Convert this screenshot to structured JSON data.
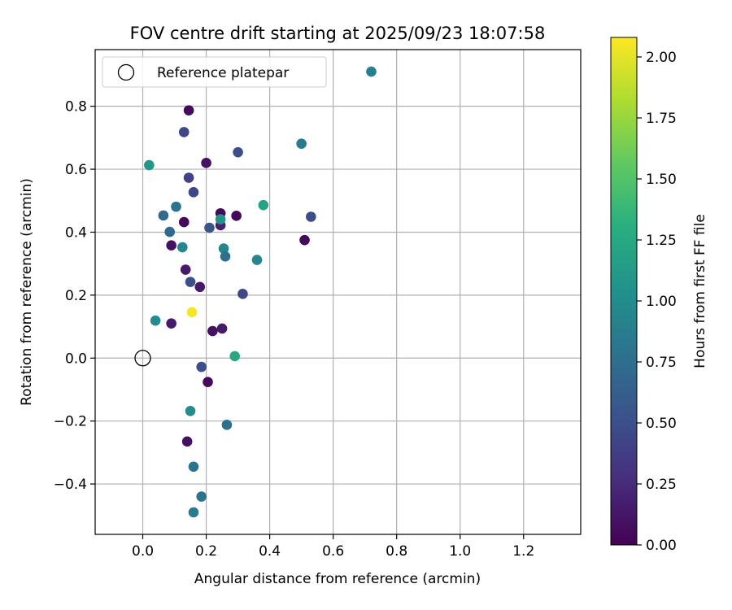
{
  "chart_data": {
    "type": "scatter",
    "title": "FOV centre drift starting at 2025/09/23 18:07:58",
    "xlabel": "Angular distance from reference (arcmin)",
    "ylabel": "Rotation from reference (arcmin)",
    "xlim": [
      -0.15,
      1.38
    ],
    "ylim": [
      -0.56,
      0.98
    ],
    "xticks": [
      "0.0",
      "0.2",
      "0.4",
      "0.6",
      "0.8",
      "1.0",
      "1.2"
    ],
    "xtick_values": [
      0.0,
      0.2,
      0.4,
      0.6,
      0.8,
      1.0,
      1.2
    ],
    "yticks": [
      "−0.4",
      "−0.2",
      "0.0",
      "0.2",
      "0.4",
      "0.6",
      "0.8"
    ],
    "ytick_values": [
      -0.4,
      -0.2,
      0.0,
      0.2,
      0.4,
      0.6,
      0.8
    ],
    "grid": true,
    "legend": {
      "position": "top-left",
      "entries": [
        "Reference platepar"
      ]
    },
    "reference_point": {
      "x": 0.0,
      "y": 0.0
    },
    "colorbar": {
      "label": "Hours from first FF file",
      "range": [
        0.0,
        2.08
      ],
      "ticks": [
        "0.00",
        "0.25",
        "0.50",
        "0.75",
        "1.00",
        "1.25",
        "1.50",
        "1.75",
        "2.00"
      ],
      "tick_values": [
        0.0,
        0.25,
        0.5,
        0.75,
        1.0,
        1.25,
        1.5,
        1.75,
        2.0
      ],
      "colormap": "viridis"
    },
    "points": [
      {
        "x": 0.145,
        "y": 0.787,
        "c": 0.05
      },
      {
        "x": 0.13,
        "y": 0.718,
        "c": 0.45
      },
      {
        "x": 0.72,
        "y": 0.91,
        "c": 0.9
      },
      {
        "x": 0.3,
        "y": 0.654,
        "c": 0.5
      },
      {
        "x": 0.5,
        "y": 0.681,
        "c": 0.85
      },
      {
        "x": 0.02,
        "y": 0.613,
        "c": 1.1
      },
      {
        "x": 0.2,
        "y": 0.62,
        "c": 0.1
      },
      {
        "x": 0.145,
        "y": 0.573,
        "c": 0.4
      },
      {
        "x": 0.16,
        "y": 0.527,
        "c": 0.45
      },
      {
        "x": 0.065,
        "y": 0.453,
        "c": 0.7
      },
      {
        "x": 0.105,
        "y": 0.481,
        "c": 0.8
      },
      {
        "x": 0.245,
        "y": 0.46,
        "c": 0.05
      },
      {
        "x": 0.295,
        "y": 0.452,
        "c": 0.05
      },
      {
        "x": 0.38,
        "y": 0.486,
        "c": 1.2
      },
      {
        "x": 0.53,
        "y": 0.449,
        "c": 0.5
      },
      {
        "x": 0.13,
        "y": 0.432,
        "c": 0.05
      },
      {
        "x": 0.245,
        "y": 0.422,
        "c": 0.2
      },
      {
        "x": 0.245,
        "y": 0.441,
        "c": 1.05
      },
      {
        "x": 0.21,
        "y": 0.414,
        "c": 0.55
      },
      {
        "x": 0.085,
        "y": 0.401,
        "c": 0.7
      },
      {
        "x": 0.51,
        "y": 0.375,
        "c": 0.05
      },
      {
        "x": 0.09,
        "y": 0.358,
        "c": 0.1
      },
      {
        "x": 0.125,
        "y": 0.352,
        "c": 0.95
      },
      {
        "x": 0.255,
        "y": 0.348,
        "c": 0.95
      },
      {
        "x": 0.26,
        "y": 0.323,
        "c": 0.75
      },
      {
        "x": 0.36,
        "y": 0.312,
        "c": 0.95
      },
      {
        "x": 0.135,
        "y": 0.281,
        "c": 0.15
      },
      {
        "x": 0.15,
        "y": 0.242,
        "c": 0.5
      },
      {
        "x": 0.18,
        "y": 0.226,
        "c": 0.15
      },
      {
        "x": 0.315,
        "y": 0.204,
        "c": 0.45
      },
      {
        "x": 0.155,
        "y": 0.146,
        "c": 2.05
      },
      {
        "x": 0.04,
        "y": 0.119,
        "c": 1.0
      },
      {
        "x": 0.09,
        "y": 0.11,
        "c": 0.15
      },
      {
        "x": 0.22,
        "y": 0.086,
        "c": 0.1
      },
      {
        "x": 0.25,
        "y": 0.094,
        "c": 0.15
      },
      {
        "x": 0.29,
        "y": 0.006,
        "c": 1.25
      },
      {
        "x": 0.185,
        "y": -0.028,
        "c": 0.5
      },
      {
        "x": 0.205,
        "y": -0.076,
        "c": 0.05
      },
      {
        "x": 0.15,
        "y": -0.168,
        "c": 1.0
      },
      {
        "x": 0.265,
        "y": -0.212,
        "c": 0.75
      },
      {
        "x": 0.14,
        "y": -0.265,
        "c": 0.1
      },
      {
        "x": 0.16,
        "y": -0.345,
        "c": 0.8
      },
      {
        "x": 0.185,
        "y": -0.44,
        "c": 0.8
      },
      {
        "x": 0.16,
        "y": -0.49,
        "c": 0.85
      }
    ]
  }
}
